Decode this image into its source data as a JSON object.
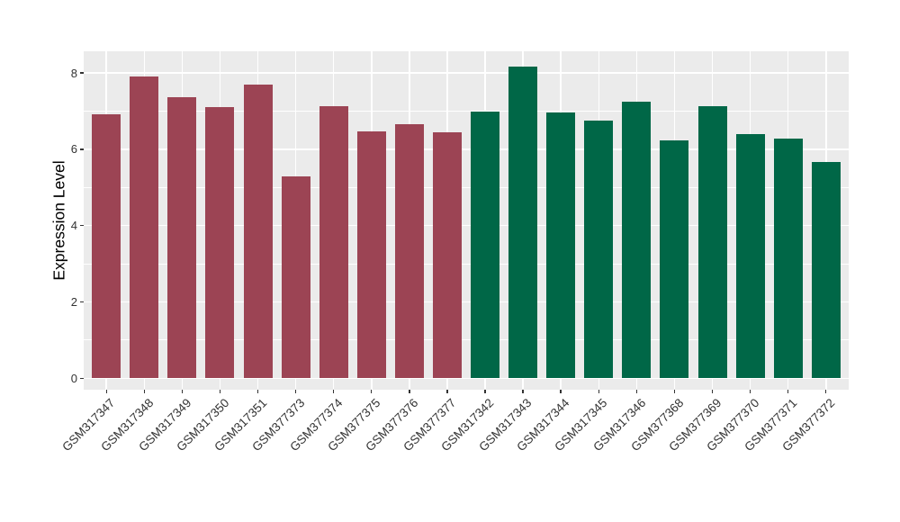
{
  "chart_data": {
    "type": "bar",
    "title": "",
    "ylabel": "Expression Level",
    "xlabel": "",
    "ylim": [
      -0.3,
      8.57
    ],
    "yticks_major": [
      0,
      2,
      4,
      6,
      8
    ],
    "yticks_minor": [
      1,
      3,
      5,
      7
    ],
    "grid": true,
    "legend_position": "none",
    "panel_bg": "#EBEBEB",
    "grid_color": "#FFFFFF",
    "axis_text_color": "#333333",
    "tick_mark_color": "#333333",
    "x_label_angle_deg": 45,
    "bar_width_ratio": 0.76,
    "x_band_padding": 0.6,
    "categories": [
      "GSM317347",
      "GSM317348",
      "GSM317349",
      "GSM317350",
      "GSM317351",
      "GSM377373",
      "GSM377374",
      "GSM377375",
      "GSM377376",
      "GSM377377",
      "GSM317342",
      "GSM317343",
      "GSM317344",
      "GSM317345",
      "GSM317346",
      "GSM377368",
      "GSM377369",
      "GSM377370",
      "GSM377371",
      "GSM377372"
    ],
    "values": [
      6.92,
      7.9,
      7.36,
      7.1,
      7.7,
      5.3,
      7.12,
      6.48,
      6.65,
      6.44,
      7.0,
      8.18,
      6.97,
      6.76,
      7.26,
      6.24,
      7.12,
      6.39,
      6.28,
      5.68
    ],
    "bar_groups": [
      "red",
      "red",
      "red",
      "red",
      "red",
      "red",
      "red",
      "red",
      "red",
      "red",
      "green",
      "green",
      "green",
      "green",
      "green",
      "green",
      "green",
      "green",
      "green",
      "green"
    ],
    "group_colors": {
      "red": "#9C4454",
      "green": "#006747"
    }
  }
}
